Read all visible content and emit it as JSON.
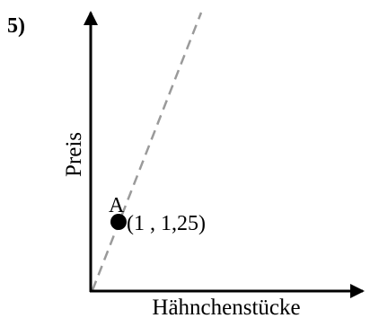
{
  "problem": {
    "number": "5)"
  },
  "axes": {
    "x_label": "Hähnchenstücke",
    "y_label": "Preis"
  },
  "point": {
    "name": "A",
    "coordinates": "(1 , 1,25)"
  },
  "colors": {
    "axis": "#000000",
    "dashed_line": "#9a9a9a",
    "point": "#000000"
  }
}
